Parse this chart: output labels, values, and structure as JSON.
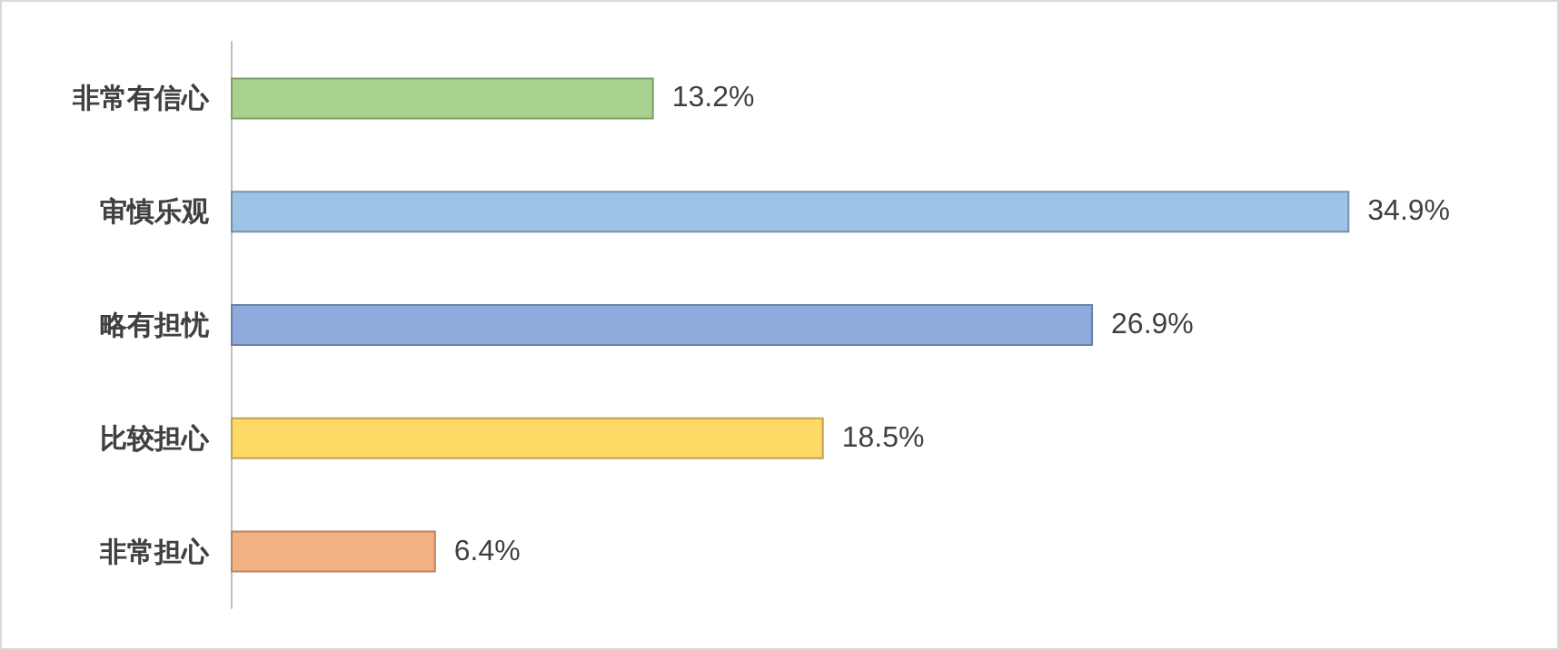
{
  "chart_data": {
    "type": "bar",
    "orientation": "horizontal",
    "categories": [
      "非常有信心",
      "审慎乐观",
      "略有担忧",
      "比较担心",
      "非常担心"
    ],
    "values": [
      13.2,
      34.9,
      26.9,
      18.5,
      6.4
    ],
    "colors": [
      "#a9d18e",
      "#9dc3e6",
      "#8faadc",
      "#ffd966",
      "#f4b183"
    ],
    "value_labels": [
      "13.2%",
      "34.9%",
      "26.9%",
      "18.5%",
      "6.4%"
    ],
    "tick_labels": "y"
  }
}
